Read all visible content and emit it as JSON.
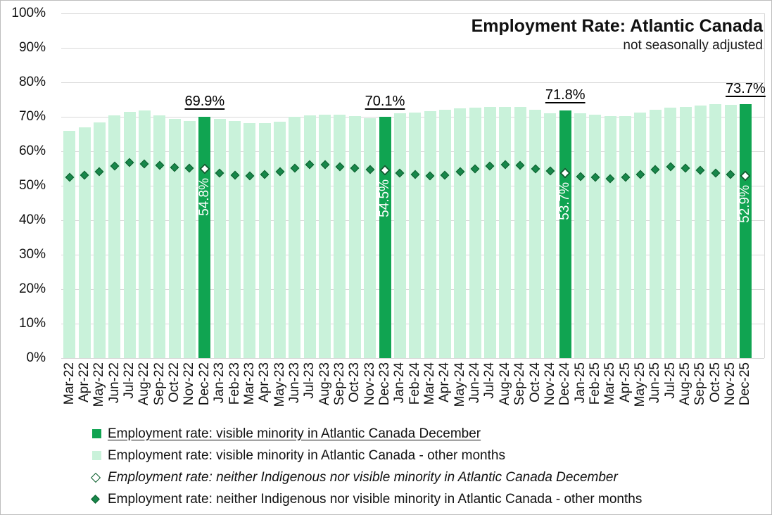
{
  "title": "Employment Rate: Atlantic Canada",
  "subtitle": "not seasonally adjusted",
  "colors": {
    "bar_light": "#C9F2DA",
    "bar_dark": "#10A451",
    "diamond_fill": "#17874A",
    "diamond_border": "#0A5E2C",
    "gridline": "#D9D9D9",
    "annotation_text": "#000000",
    "inside_label_text": "#FFFFFF"
  },
  "legend": {
    "items": [
      {
        "label": "Employment rate: visible minority in Atlantic Canada December",
        "marker": "square-dark",
        "underline": true,
        "italic": false
      },
      {
        "label": "Employment rate: visible minority in Atlantic Canada - other months",
        "marker": "square-light",
        "underline": false,
        "italic": false
      },
      {
        "label": "Employment rate: neither Indigenous nor visible minority in Atlantic Canada December",
        "marker": "diamond-hollow",
        "underline": false,
        "italic": true
      },
      {
        "label": "Employment rate: neither Indigenous nor visible minority in Atlantic Canada - other months",
        "marker": "diamond-filled",
        "underline": false,
        "italic": false
      }
    ]
  },
  "chart_data": {
    "type": "bar",
    "title": "Employment Rate: Atlantic Canada",
    "subtitle": "not seasonally adjusted",
    "xlabel": "",
    "ylabel": "",
    "ylim": [
      0,
      100
    ],
    "ytick_step": 10,
    "ytick_labels": [
      "0%",
      "10%",
      "20%",
      "30%",
      "40%",
      "50%",
      "60%",
      "70%",
      "80%",
      "90%",
      "100%"
    ],
    "grid": true,
    "legend_position": "bottom",
    "categories": [
      "Mar-22",
      "Apr-22",
      "May-22",
      "Jun-22",
      "Jul-22",
      "Aug-22",
      "Sep-22",
      "Oct-22",
      "Nov-22",
      "Dec-22",
      "Jan-23",
      "Feb-23",
      "Mar-23",
      "Apr-23",
      "May-23",
      "Jun-23",
      "Jul-23",
      "Aug-23",
      "Sep-23",
      "Oct-23",
      "Nov-23",
      "Dec-23",
      "Jan-24",
      "Feb-24",
      "Mar-24",
      "Apr-24",
      "May-24",
      "Jun-24",
      "Jul-24",
      "Aug-24",
      "Sep-24",
      "Oct-24",
      "Nov-24",
      "Dec-24",
      "Jan-25",
      "Feb-25",
      "Mar-25",
      "Apr-25",
      "May-25",
      "Jun-25",
      "Jul-25",
      "Aug-25",
      "Sep-25",
      "Oct-25",
      "Nov-25",
      "Dec-25"
    ],
    "series": [
      {
        "name": "Employment rate: visible minority in Atlantic Canada",
        "type": "bar",
        "values": [
          66.0,
          67.0,
          68.4,
          70.4,
          71.5,
          71.8,
          70.4,
          69.4,
          68.8,
          69.9,
          69.3,
          68.7,
          68.2,
          68.1,
          68.6,
          69.9,
          70.4,
          70.6,
          70.6,
          70.2,
          69.6,
          70.1,
          71.0,
          71.3,
          71.7,
          72.0,
          72.4,
          72.6,
          72.9,
          72.8,
          72.8,
          72.0,
          71.1,
          71.8,
          71.0,
          70.7,
          70.2,
          70.2,
          71.3,
          72.0,
          72.7,
          72.8,
          73.2,
          73.7,
          73.5,
          73.7
        ]
      },
      {
        "name": "Employment rate: neither Indigenous nor visible minority in Atlantic Canada",
        "type": "scatter-diamond",
        "values": [
          52.5,
          53.1,
          54.1,
          55.7,
          56.8,
          56.3,
          56.0,
          55.4,
          55.2,
          54.8,
          53.6,
          53.1,
          52.8,
          53.2,
          54.1,
          55.1,
          56.1,
          56.1,
          55.6,
          55.1,
          54.7,
          54.5,
          53.6,
          53.3,
          52.8,
          53.1,
          54.1,
          55.0,
          55.8,
          56.2,
          56.0,
          54.9,
          54.3,
          53.7,
          52.6,
          52.4,
          52.1,
          52.4,
          53.3,
          54.7,
          55.6,
          55.1,
          54.5,
          53.7,
          53.2,
          52.9
        ]
      }
    ],
    "december_highlights": [
      {
        "category": "Dec-22",
        "bar_label": "69.9%",
        "marker_label": "54.8%"
      },
      {
        "category": "Dec-23",
        "bar_label": "70.1%",
        "marker_label": "54.5%"
      },
      {
        "category": "Dec-24",
        "bar_label": "71.8%",
        "marker_label": "53.7%"
      },
      {
        "category": "Dec-25",
        "bar_label": "73.7%",
        "marker_label": "52.9%"
      }
    ]
  }
}
